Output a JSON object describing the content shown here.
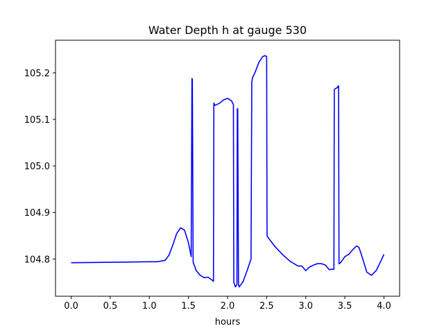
{
  "chart_data": {
    "type": "line",
    "title": "Water Depth h at gauge 530",
    "xlabel": "hours",
    "ylabel": "",
    "xlim": [
      -0.2,
      4.2
    ],
    "ylim": [
      104.72,
      105.27
    ],
    "xticks": [
      0.0,
      0.5,
      1.0,
      1.5,
      2.0,
      2.5,
      3.0,
      3.5,
      4.0
    ],
    "xtick_labels": [
      "0.0",
      "0.5",
      "1.0",
      "1.5",
      "2.0",
      "2.5",
      "3.0",
      "3.5",
      "4.0"
    ],
    "yticks": [
      104.8,
      104.9,
      105.0,
      105.1,
      105.2
    ],
    "ytick_labels": [
      "104.8",
      "104.9",
      "105.0",
      "105.1",
      "105.2"
    ],
    "grid": false,
    "series": [
      {
        "color": "#0000ff",
        "x": [
          0.0,
          0.5,
          1.0,
          1.1,
          1.2,
          1.25,
          1.3,
          1.35,
          1.4,
          1.45,
          1.5,
          1.535,
          1.545,
          1.55,
          1.56,
          1.6,
          1.65,
          1.7,
          1.75,
          1.8,
          1.82,
          1.825,
          1.84,
          1.9,
          1.95,
          2.0,
          2.05,
          2.075,
          2.08,
          2.1,
          2.12,
          2.125,
          2.13,
          2.14,
          2.145,
          2.15,
          2.2,
          2.25,
          2.3,
          2.31,
          2.32,
          2.35,
          2.4,
          2.45,
          2.48,
          2.5,
          2.505,
          2.51,
          2.6,
          2.7,
          2.8,
          2.9,
          2.95,
          3.0,
          3.05,
          3.1,
          3.15,
          3.2,
          3.25,
          3.3,
          3.33,
          3.36,
          3.365,
          3.37,
          3.4,
          3.42,
          3.425,
          3.43,
          3.45,
          3.5,
          3.55,
          3.6,
          3.65,
          3.68,
          3.72,
          3.78,
          3.84,
          3.9,
          3.95,
          4.0
        ],
        "y": [
          104.792,
          104.793,
          104.794,
          104.794,
          104.797,
          104.808,
          104.83,
          104.855,
          104.867,
          104.862,
          104.835,
          104.805,
          105.188,
          105.185,
          104.793,
          104.775,
          104.765,
          104.76,
          104.761,
          104.755,
          104.752,
          105.135,
          105.13,
          105.135,
          105.142,
          105.145,
          105.14,
          105.132,
          104.75,
          104.74,
          104.745,
          105.122,
          105.123,
          104.745,
          104.742,
          104.74,
          104.752,
          104.775,
          104.8,
          105.18,
          105.19,
          105.2,
          105.222,
          105.235,
          105.237,
          105.235,
          104.85,
          104.848,
          104.828,
          104.81,
          104.795,
          104.785,
          104.785,
          104.775,
          104.783,
          104.787,
          104.79,
          104.79,
          104.787,
          104.777,
          104.778,
          104.778,
          105.163,
          105.165,
          105.168,
          105.172,
          104.79,
          104.79,
          104.793,
          104.805,
          104.81,
          104.82,
          104.828,
          104.825,
          104.805,
          104.772,
          104.765,
          104.775,
          104.792,
          104.81
        ]
      }
    ]
  }
}
